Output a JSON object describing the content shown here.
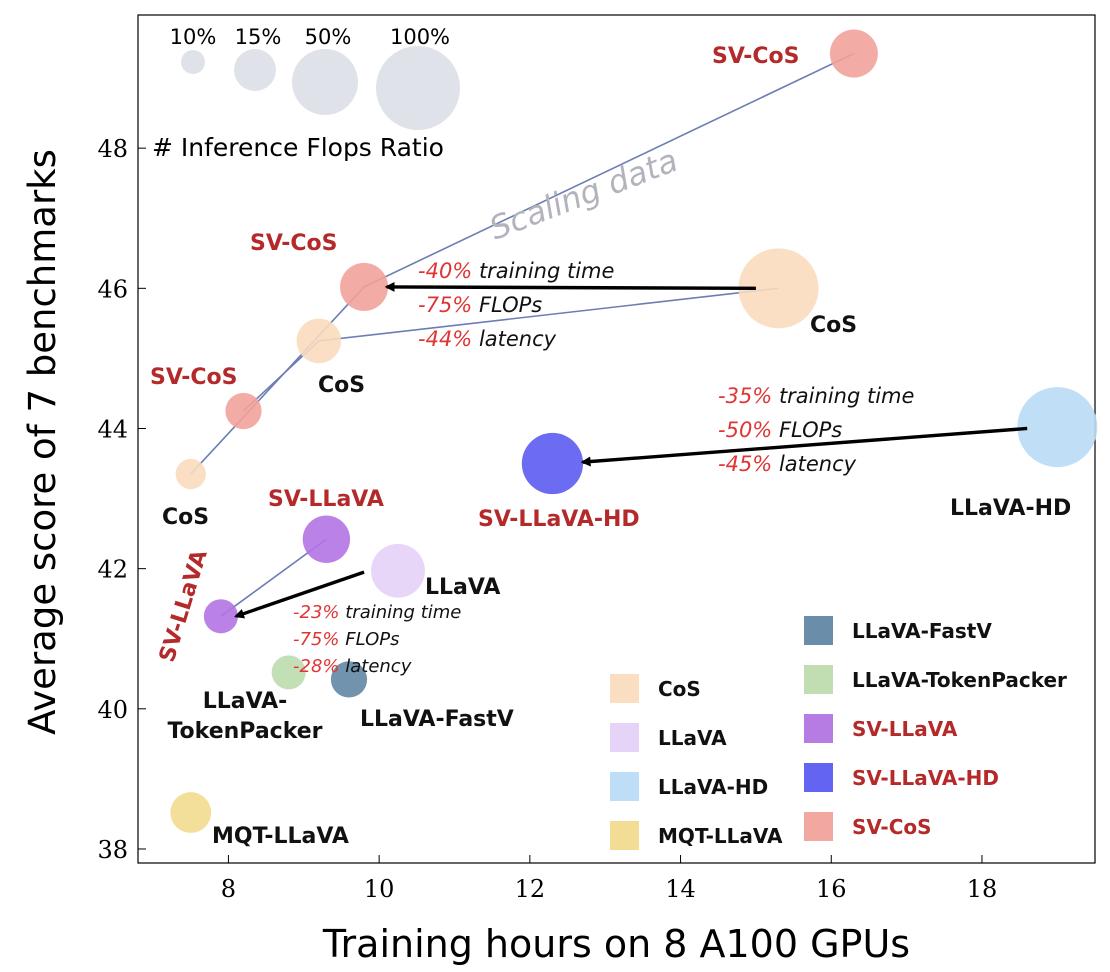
{
  "colors": {
    "CoS": "#f9dcbf",
    "LLaVA": "#e4d2f7",
    "LLaVA-HD": "#b9dcf6",
    "MQT-LLaVA": "#f2db8e",
    "LLaVA-FastV": "#6287a5",
    "LLaVA-TokenPacker": "#bddcae",
    "SV-LLaVA": "#b374e3",
    "SV-LLaVA-HD": "#5c5cf2",
    "SV-CoS": "#f2a29c",
    "size_legend": "#dfe3e9",
    "red_label": "#b42a2a",
    "black_label": "#111111",
    "scaling_line": "#6b7db4",
    "scaling_text": "#b3b3be",
    "percent_red": "#e03535"
  },
  "chart_data": {
    "type": "scatter",
    "xlabel": "Training hours on 8 A100 GPUs",
    "ylabel": "Average score of 7 benchmarks",
    "xlim": [
      6.8,
      19.5
    ],
    "ylim": [
      37.8,
      49.9
    ],
    "xticks": [
      8,
      10,
      12,
      14,
      16,
      18
    ],
    "yticks": [
      38,
      40,
      42,
      44,
      46,
      48
    ],
    "points": [
      {
        "name": "CoS",
        "x": 15.3,
        "y": 46.0,
        "flops": 100,
        "label": "CoS",
        "label_color": "black"
      },
      {
        "name": "CoS",
        "x": 9.2,
        "y": 45.25,
        "flops": 20,
        "label": "CoS",
        "label_color": "black"
      },
      {
        "name": "CoS",
        "x": 7.5,
        "y": 43.35,
        "flops": 5,
        "label": "CoS",
        "label_color": "black"
      },
      {
        "name": "SV-CoS",
        "x": 9.8,
        "y": 46.02,
        "flops": 25,
        "label": "SV-CoS",
        "label_color": "red"
      },
      {
        "name": "SV-CoS",
        "x": 8.2,
        "y": 44.25,
        "flops": 10,
        "label": "SV-CoS",
        "label_color": "red"
      },
      {
        "name": "SV-CoS",
        "x": 16.3,
        "y": 49.35,
        "flops": 25,
        "label": "SV-CoS",
        "label_color": "red"
      },
      {
        "name": "LLaVA",
        "x": 10.25,
        "y": 41.97,
        "flops": 35,
        "label": "LLaVA",
        "label_color": "black"
      },
      {
        "name": "SV-LLaVA",
        "x": 9.3,
        "y": 42.42,
        "flops": 24,
        "label": "SV-LLaVA",
        "label_color": "red"
      },
      {
        "name": "SV-LLaVA",
        "x": 7.9,
        "y": 41.32,
        "flops": 8,
        "label": "SV-LLaVA",
        "label_color": "red"
      },
      {
        "name": "LLaVA-HD",
        "x": 19.0,
        "y": 44.02,
        "flops": 100,
        "label": "LLaVA-HD",
        "label_color": "black"
      },
      {
        "name": "SV-LLaVA-HD",
        "x": 12.3,
        "y": 43.5,
        "flops": 50,
        "label": "SV-LLaVA-HD",
        "label_color": "red"
      },
      {
        "name": "LLaVA-TokenPacker",
        "x": 8.8,
        "y": 40.52,
        "flops": 8,
        "label": "LLaVA-\nTokenPacker",
        "label_color": "black"
      },
      {
        "name": "LLaVA-FastV",
        "x": 9.6,
        "y": 40.42,
        "flops": 10,
        "label": "LLaVA-FastV",
        "label_color": "black"
      },
      {
        "name": "MQT-LLaVA",
        "x": 7.5,
        "y": 38.52,
        "flops": 15,
        "label": "MQT-LLaVA",
        "label_color": "black"
      }
    ],
    "scaling_lines": [
      [
        [
          7.5,
          43.35
        ],
        [
          9.8,
          46.02
        ],
        [
          16.3,
          49.35
        ]
      ],
      [
        [
          8.2,
          44.25
        ],
        [
          9.2,
          45.25
        ],
        [
          15.3,
          46.0
        ]
      ],
      [
        [
          7.9,
          41.32
        ],
        [
          9.3,
          42.42
        ]
      ]
    ],
    "scaling_label": "Scaling data",
    "arrows": [
      {
        "from": [
          15.0,
          46.0
        ],
        "to": [
          10.1,
          46.02
        ],
        "lines": [
          [
            "-40%",
            " training time"
          ],
          [
            "-75%",
            " FLOPs"
          ],
          [
            "-44%",
            " latency"
          ]
        ]
      },
      {
        "from": [
          18.6,
          44.0
        ],
        "to": [
          12.7,
          43.52
        ],
        "lines": [
          [
            "-35%",
            " training time"
          ],
          [
            "-50%",
            " FLOPs"
          ],
          [
            "-45%",
            " latency"
          ]
        ]
      },
      {
        "from": [
          9.8,
          41.95
        ],
        "to": [
          8.1,
          41.32
        ],
        "lines": [
          [
            "-23%",
            " training time"
          ],
          [
            "-75%",
            " FLOPs"
          ],
          [
            "-28%",
            " latency"
          ]
        ]
      }
    ],
    "size_legend": {
      "title": "# Inference Flops Ratio",
      "items": [
        {
          "label": "10%",
          "r": 12
        },
        {
          "label": "15%",
          "r": 21
        },
        {
          "label": "50%",
          "r": 33
        },
        {
          "label": "100%",
          "r": 42
        }
      ]
    },
    "legend": {
      "position": "bottom-right",
      "items": [
        {
          "label": "CoS",
          "key": "CoS",
          "label_color": "black"
        },
        {
          "label": "LLaVA",
          "key": "LLaVA",
          "label_color": "black"
        },
        {
          "label": "LLaVA-HD",
          "key": "LLaVA-HD",
          "label_color": "black"
        },
        {
          "label": "MQT-LLaVA",
          "key": "MQT-LLaVA",
          "label_color": "black"
        },
        {
          "label": "LLaVA-FastV",
          "key": "LLaVA-FastV",
          "label_color": "black"
        },
        {
          "label": "LLaVA-TokenPacker",
          "key": "LLaVA-TokenPacker",
          "label_color": "black"
        },
        {
          "label": "SV-LLaVA",
          "key": "SV-LLaVA",
          "label_color": "red"
        },
        {
          "label": "SV-LLaVA-HD",
          "key": "SV-LLaVA-HD",
          "label_color": "red"
        },
        {
          "label": "SV-CoS",
          "key": "SV-CoS",
          "label_color": "red"
        }
      ]
    }
  }
}
